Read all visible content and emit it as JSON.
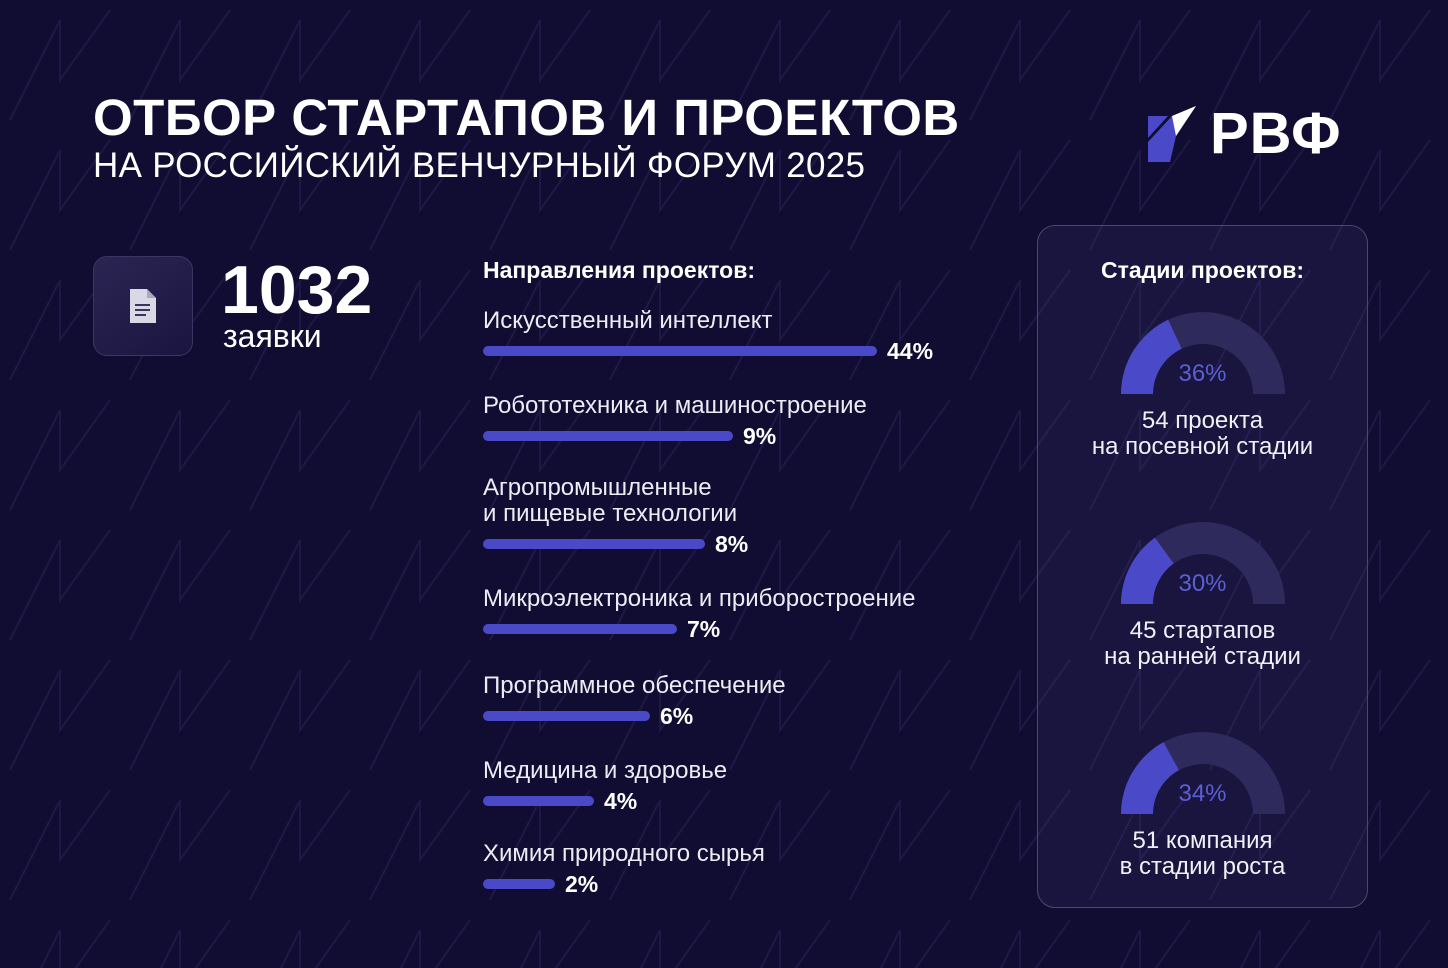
{
  "header": {
    "title": "ОТБОР СТАРТАПОВ И ПРОЕКТОВ",
    "subtitle": "НА РОССИЙСКИЙ ВЕНЧУРНЫЙ ФОРУМ 2025",
    "logo_text": "РВФ"
  },
  "summary": {
    "icon": "document-icon",
    "count": "1032",
    "label": "заявки"
  },
  "chart_data": [
    {
      "type": "bar",
      "title": "Направления проектов:",
      "categories": [
        "Искусственный интеллект",
        "Робототехника и машиностроение",
        "Агропромышленные\nи пищевые технологии",
        "Микроэлектроника и приборостроение",
        "Программное обеспечение",
        "Медицина и здоровье",
        "Химия природного сырья"
      ],
      "values": [
        44,
        9,
        8,
        7,
        6,
        4,
        2
      ],
      "value_labels": [
        "44%",
        "9%",
        "8%",
        "7%",
        "6%",
        "4%",
        "2%"
      ],
      "color": "#4a4ac9"
    },
    {
      "type": "pie",
      "subtype": "semi-donut gauges",
      "title": "Стадии проектов:",
      "series": [
        {
          "value": 36,
          "label": "36%",
          "title": "54 проекта",
          "subtitle": "на посевной стадии"
        },
        {
          "value": 30,
          "label": "30%",
          "title": "45 стартапов",
          "subtitle": "на ранней стадии"
        },
        {
          "value": 34,
          "label": "34%",
          "title": "51 компания",
          "subtitle": "в стадии роста"
        }
      ],
      "fill_color": "#4a4ac9",
      "track_color": "#2f2a5c"
    }
  ]
}
